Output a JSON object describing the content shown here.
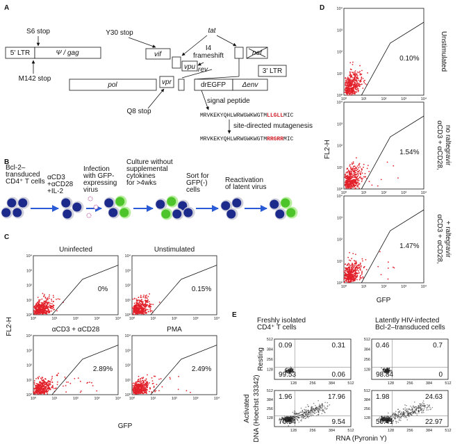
{
  "panel_A": {
    "label": "A",
    "boxes": {
      "ltr5": "5' LTR",
      "gag": "Ψ / gag",
      "vif": "vif",
      "vpu": "vpu",
      "nef": "nef",
      "ltr3": "3' LTR",
      "pol": "pol",
      "vpr": "vpr",
      "egfp": "drEGFP",
      "env": "Δenv"
    },
    "annotations": {
      "s6": "S6 stop",
      "m142": "M142 stop",
      "y30": "Y30 stop",
      "tat": "tat",
      "i4": [
        "I4",
        "frameshift"
      ],
      "rev": "rev",
      "q8": "Q8 stop",
      "signal": "signal peptide",
      "mutagenesis": "site-directed mutagenesis"
    },
    "sequence_wt": [
      "MRVKEKYQHLWRWGWKWGTM",
      "LLGLL",
      "MIC"
    ],
    "sequence_mut": [
      "MRVKEKYQHLWRWGWKWGTM",
      "RRGRR",
      "MIC"
    ]
  },
  "panel_B": {
    "label": "B",
    "steps": [
      [
        "Bcl-2–",
        "transduced",
        "CD4⁺ T cells"
      ],
      [
        "αCD3",
        "+αCD28",
        "+IL-2"
      ],
      [
        "Infection",
        "with GFP-",
        "expressing",
        "virus"
      ],
      [
        "Culture without",
        "supplemental",
        "cytokines",
        "for >4wks"
      ],
      [
        "Sort for",
        "GFP(-)",
        "cells"
      ],
      [
        "Reactivation",
        "of latent virus"
      ]
    ]
  },
  "flow_tick_labels": [
    "10⁰",
    "10¹",
    "10²",
    "10³",
    "10⁴"
  ],
  "panel_C": {
    "label": "C",
    "y_label": "FL2-H",
    "x_label": "GFP",
    "plots": [
      {
        "title": "Uninfected",
        "percent": "0%"
      },
      {
        "title": "Unstimulated",
        "percent": "0.15%"
      },
      {
        "title": "αCD3 + αCD28",
        "percent": "2.89%"
      },
      {
        "title": "PMA",
        "percent": "2.49%"
      }
    ]
  },
  "panel_D": {
    "label": "D",
    "y_label": "FL2-H",
    "x_label": "GFP",
    "plots": [
      {
        "percent": "0.10%",
        "condition": [
          "Unstimulated"
        ]
      },
      {
        "percent": "1.54%",
        "condition": [
          "αCD3 + αCD28,",
          "no raltegravir"
        ]
      },
      {
        "percent": "1.47%",
        "condition": [
          "αCD3 + αCD28,",
          "+ raltegravir"
        ]
      }
    ]
  },
  "panel_E": {
    "label": "E",
    "columns": [
      [
        "Freshly isolated",
        "CD4⁺ T cells"
      ],
      [
        "Latently HIV-infected",
        "Bcl-2–transduced cells"
      ]
    ],
    "rows": [
      "Resting",
      "Activated"
    ],
    "y_label": "DNA (Hoechst 33342)",
    "x_label": "RNA (Pyronin Y)",
    "tick_labels": [
      "128",
      "256",
      "384",
      "512"
    ],
    "plots": [
      [
        "0.09",
        "0.31",
        "99.53",
        "0.06"
      ],
      [
        "0.46",
        "0.7",
        "98.84",
        "0"
      ],
      [
        "1.96",
        "17.96",
        "70.54",
        "9.54"
      ],
      [
        "1.98",
        "24.63",
        "50.41",
        "22.97"
      ]
    ]
  }
}
